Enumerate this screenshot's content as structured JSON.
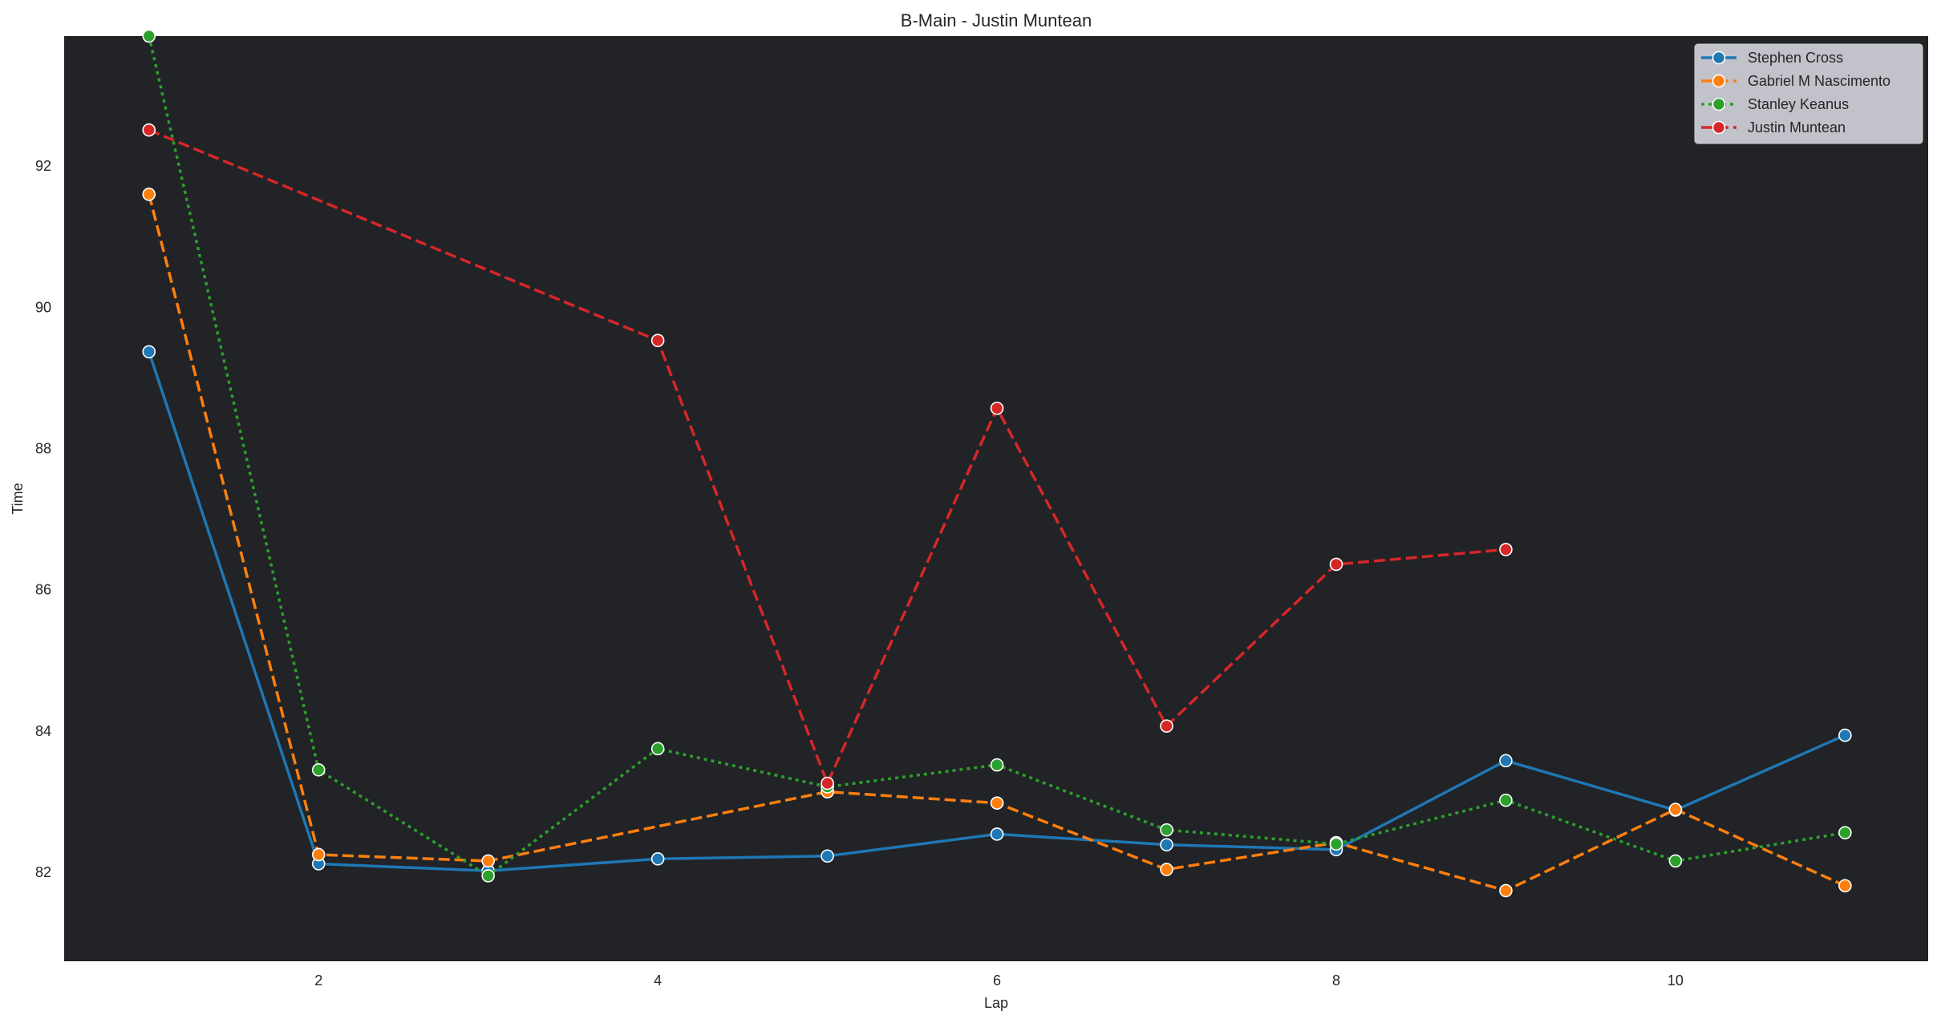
{
  "chart_data": {
    "type": "line",
    "title": "B-Main - Justin Muntean",
    "xlabel": "Lap",
    "ylabel": "Time",
    "xlim": [
      0.5,
      11.49
    ],
    "ylim": [
      80.74,
      93.84
    ],
    "xticks": [
      2,
      4,
      6,
      8,
      10
    ],
    "yticks": [
      82,
      84,
      86,
      88,
      90,
      92
    ],
    "grid": false,
    "legend_position": "top-right",
    "plot_background": "#212327",
    "x": [
      1,
      2,
      3,
      4,
      5,
      6,
      7,
      8,
      9,
      10,
      11
    ],
    "series": [
      {
        "name": "Stephen Cross",
        "color": "#1f77b4",
        "dash": "solid",
        "values": [
          89.37,
          82.12,
          82.02,
          82.19,
          82.23,
          82.54,
          82.39,
          82.32,
          83.58,
          82.88,
          83.94
        ]
      },
      {
        "name": "Gabriel M Nascimento",
        "color": "#ff7f0e",
        "dash": "dashed",
        "values": [
          91.6,
          82.25,
          82.16,
          null,
          83.14,
          82.98,
          82.04,
          82.42,
          81.74,
          82.89,
          81.81
        ]
      },
      {
        "name": "Stanley Keanus",
        "color": "#2ca02c",
        "dash": "dotted",
        "values": [
          93.84,
          83.45,
          81.95,
          83.75,
          83.21,
          83.52,
          82.6,
          82.4,
          83.02,
          82.16,
          82.56
        ]
      },
      {
        "name": "Justin Muntean",
        "color": "#d62728",
        "dash": "dashed",
        "values": [
          92.51,
          null,
          null,
          89.53,
          83.26,
          88.57,
          84.07,
          86.36,
          86.57,
          null,
          null
        ]
      }
    ]
  }
}
